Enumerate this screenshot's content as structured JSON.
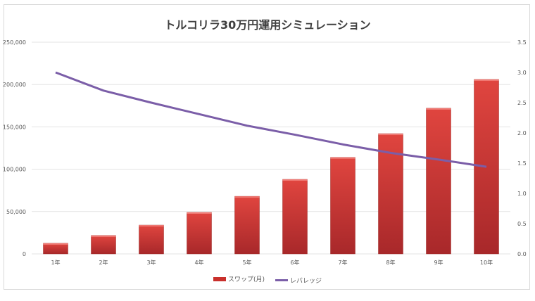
{
  "chart_data": {
    "type": "bar",
    "title": "トルコリラ30万円運用シミュレーション",
    "categories": [
      "1年",
      "2年",
      "3年",
      "4年",
      "5年",
      "6年",
      "7年",
      "8年",
      "9年",
      "10年"
    ],
    "series": [
      {
        "name": "スワップ(月)",
        "type": "bar",
        "axis": "left",
        "color": "#d13b36",
        "values": [
          12500,
          21700,
          34000,
          49000,
          68000,
          88000,
          114000,
          142000,
          172000,
          206000
        ]
      },
      {
        "name": "レバレッジ",
        "type": "line",
        "axis": "right",
        "color": "#7b5ea8",
        "values": [
          3.0,
          2.7,
          2.5,
          2.31,
          2.12,
          1.97,
          1.81,
          1.67,
          1.56,
          1.44
        ]
      }
    ],
    "y_left": {
      "range": [
        0,
        250000
      ],
      "ticks": [
        "0",
        "50,000",
        "100,000",
        "150,000",
        "200,000",
        "250,000"
      ]
    },
    "y_right": {
      "range": [
        0,
        3.5
      ],
      "ticks": [
        "0.0",
        "0.5",
        "1.0",
        "1.5",
        "2.0",
        "2.5",
        "3.0",
        "3.5"
      ]
    },
    "grid": true,
    "legend": "bottom"
  }
}
